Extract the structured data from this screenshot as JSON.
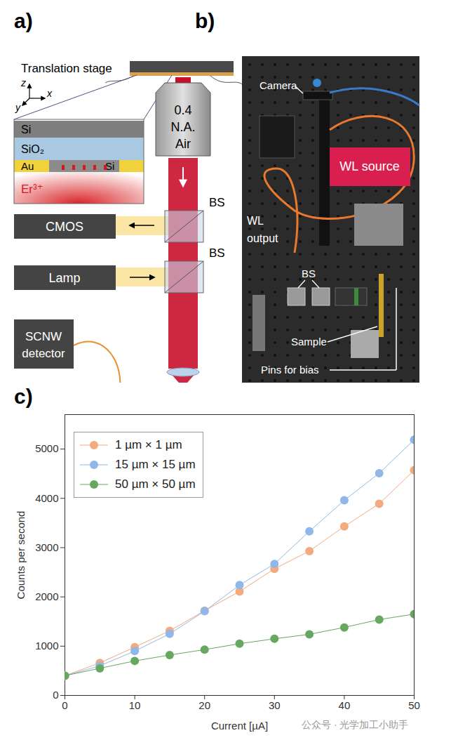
{
  "panel_a": {
    "label": "a)",
    "stage": "Translation stage",
    "axes": [
      "z",
      "x",
      "y"
    ],
    "layers": {
      "top": "Si",
      "oxide": "SiO₂",
      "metal": "Au",
      "gap": "Si"
    },
    "emitter": "Er³⁺",
    "objective": [
      "0.4",
      "N.A.",
      "Air"
    ],
    "beamsplitters": [
      "BS",
      "BS"
    ],
    "camera": "CMOS",
    "lamp": "Lamp",
    "detector": [
      "SCNW",
      "detector"
    ]
  },
  "panel_b": {
    "label": "b)",
    "camera": "Camera",
    "source": "WL source",
    "output": [
      "WL",
      "output"
    ],
    "beamsplitters": "BS",
    "sample": "Sample",
    "pins": "Pins for bias"
  },
  "chart_data": {
    "label": "c)",
    "type": "line",
    "xlabel": "Current [µA]",
    "ylabel": "Counts per second",
    "x": [
      0,
      5,
      10,
      15,
      20,
      25,
      30,
      35,
      40,
      45,
      50
    ],
    "series": [
      {
        "name": "1 µm × 1 µm",
        "color": "#f2aa7e",
        "marker": "circle",
        "values": [
          400,
          660,
          980,
          1310,
          1720,
          2110,
          2570,
          2930,
          3430,
          3890,
          4570
        ]
      },
      {
        "name": "15 µm × 15 µm",
        "color": "#8fb8e8",
        "marker": "circle",
        "values": [
          400,
          600,
          900,
          1250,
          1710,
          2240,
          2670,
          3330,
          3960,
          4510,
          5190
        ]
      },
      {
        "name": "50 µm × 50 µm",
        "color": "#66a85f",
        "marker": "circle",
        "values": [
          400,
          550,
          700,
          820,
          930,
          1050,
          1150,
          1240,
          1380,
          1540,
          1650
        ]
      }
    ],
    "xlim": [
      0,
      50
    ],
    "xticks": [
      0,
      10,
      20,
      30,
      40,
      50
    ],
    "ylim": [
      0,
      5700
    ],
    "yticks": [
      0,
      1000,
      2000,
      3000,
      4000,
      5000
    ],
    "legend": "upper left",
    "grid": false
  },
  "watermark": "公众号 · 光学加工小助手"
}
